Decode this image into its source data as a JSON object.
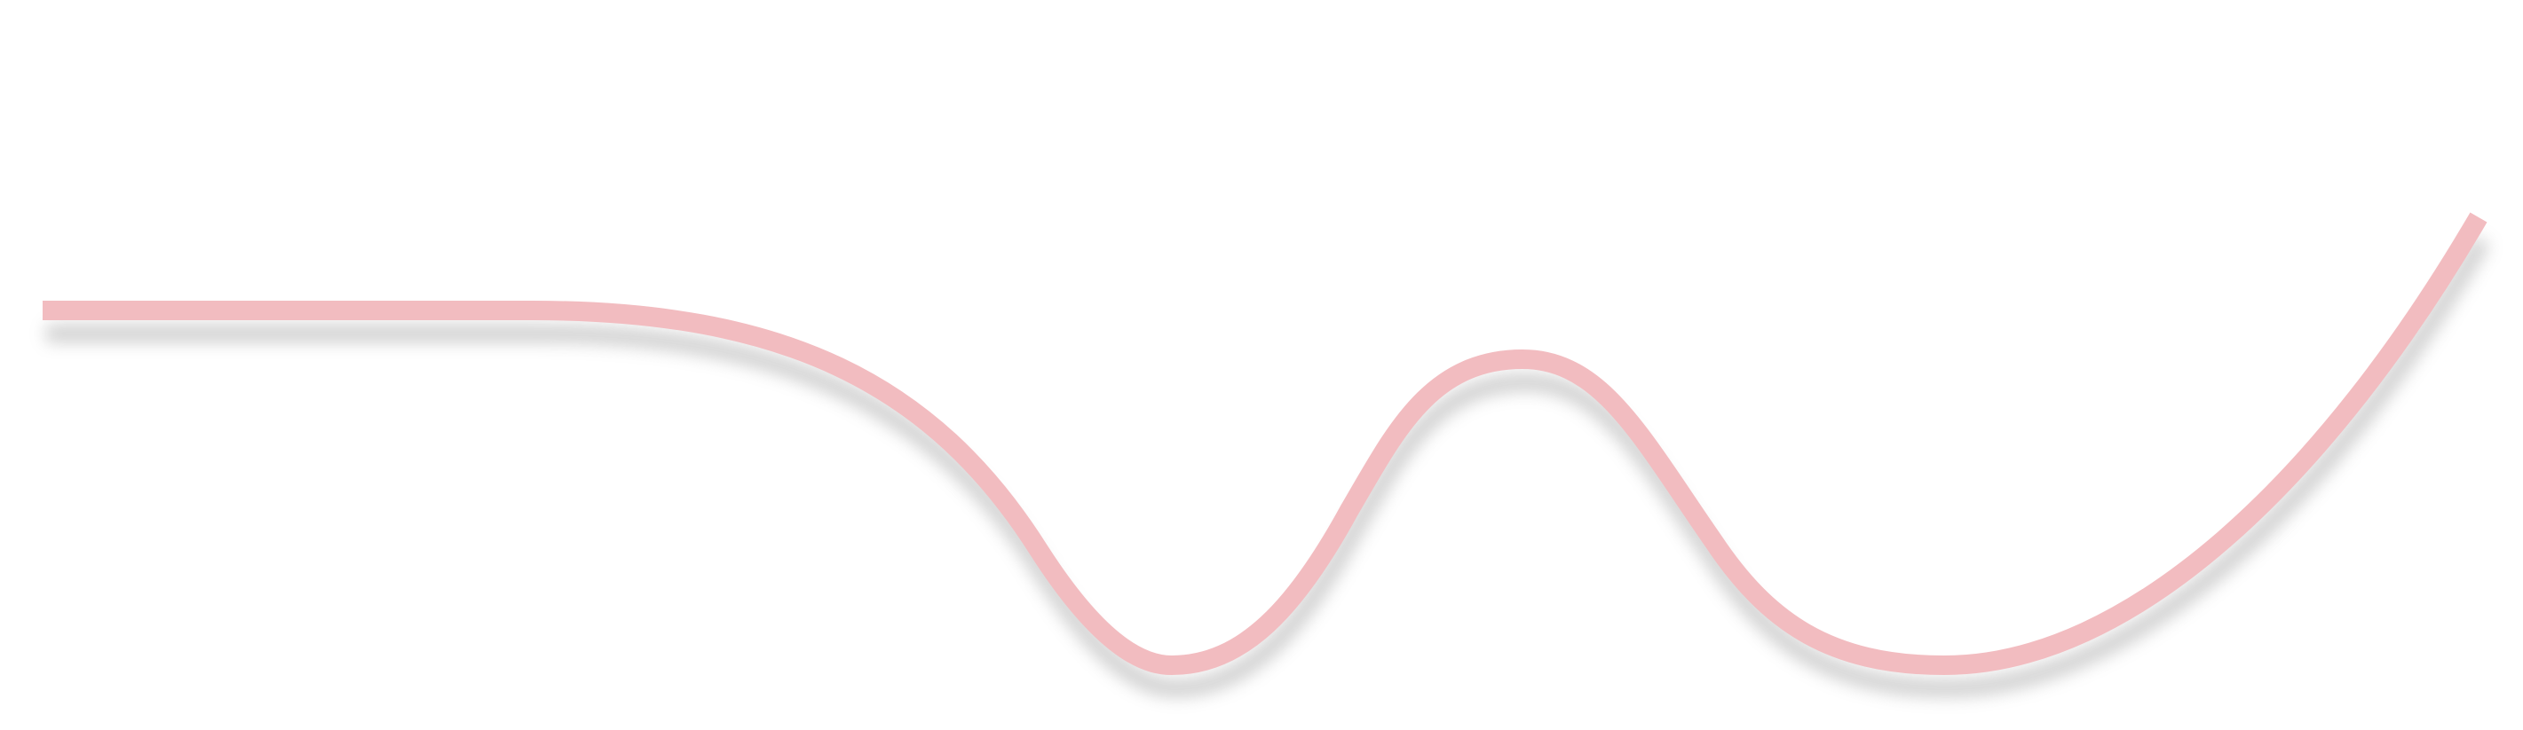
{
  "colors": {
    "background": "#ffffff",
    "rule_line": "#e2e2e2",
    "curve_stroke": "#f2bcc0",
    "curve_shadow": "#7a7a7a"
  }
}
